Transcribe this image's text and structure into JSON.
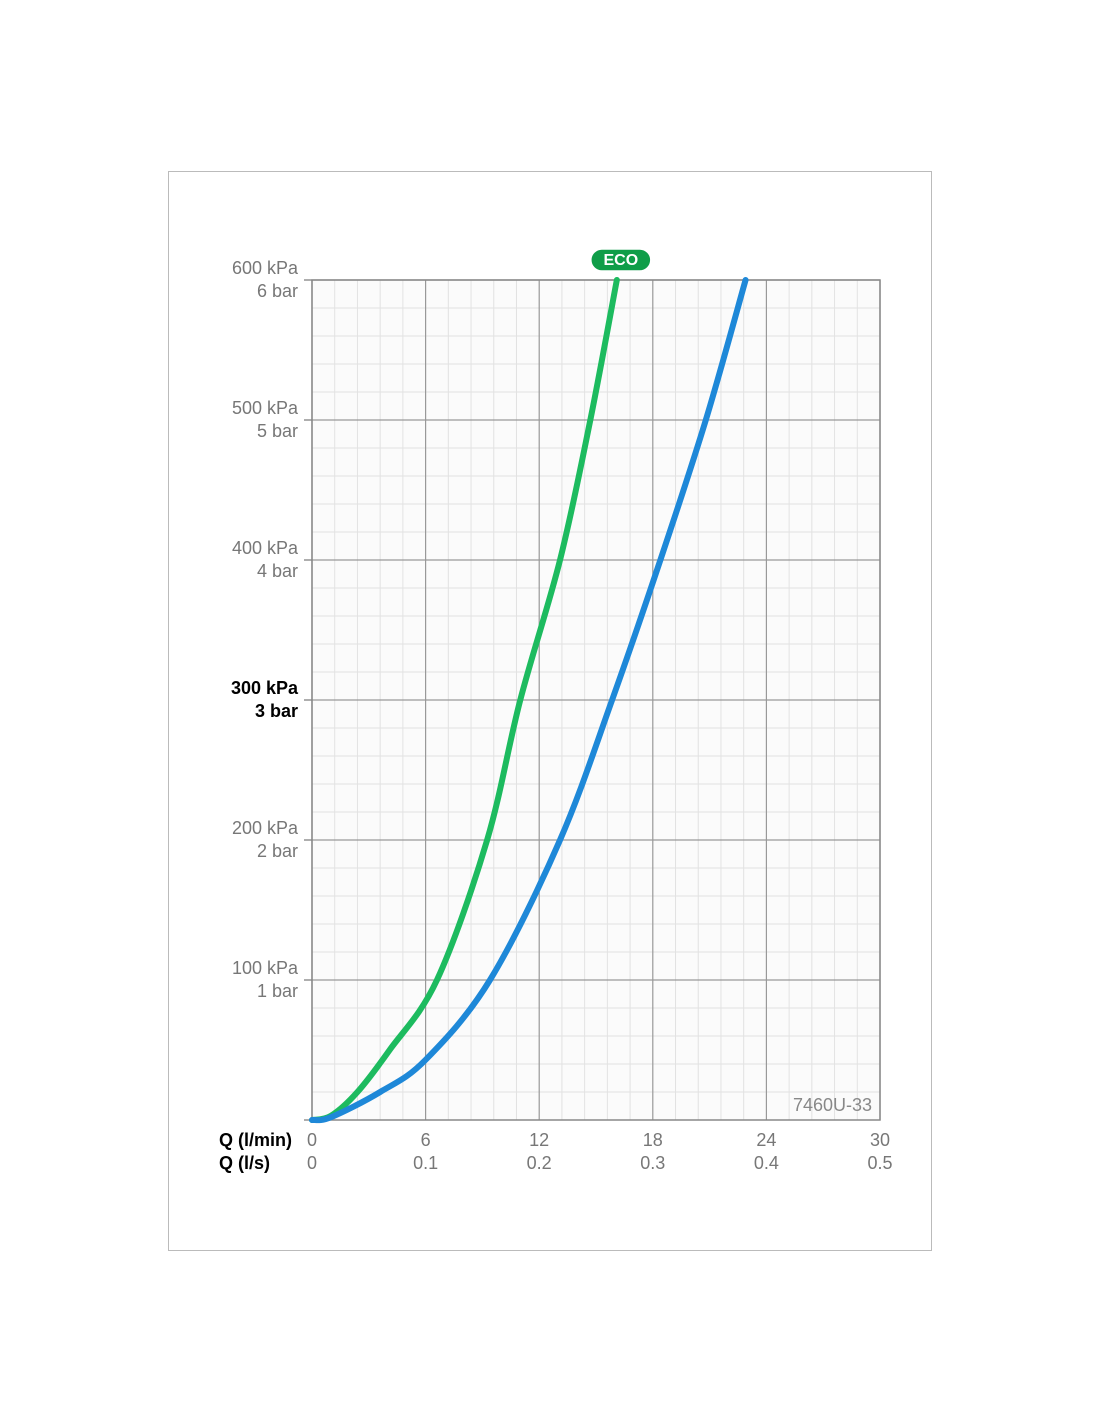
{
  "chart_data": {
    "type": "line",
    "xlabel": "Q (l/min)",
    "x2label": "Q (l/s)",
    "xlim": [
      0,
      30
    ],
    "xticks": [
      0,
      6,
      12,
      18,
      24,
      30
    ],
    "x2lim": [
      0,
      0.5
    ],
    "x2ticks": [
      0,
      0.1,
      0.2,
      0.3,
      0.4,
      0.5
    ],
    "ylim": [
      0,
      600
    ],
    "yticks": [
      {
        "value": 100,
        "label": "100 kPa"
      },
      {
        "value": 200,
        "label": "200 kPa"
      },
      {
        "value": 300,
        "label": "300 kPa"
      },
      {
        "value": 400,
        "label": "400 kPa"
      },
      {
        "value": 500,
        "label": "500 kPa"
      },
      {
        "value": 600,
        "label": "600 kPa"
      }
    ],
    "y2lim": [
      0,
      6
    ],
    "y2ticks": [
      {
        "value": 1,
        "label": "1 bar"
      },
      {
        "value": 2,
        "label": "2 bar"
      },
      {
        "value": 3,
        "label": "3 bar"
      },
      {
        "value": 4,
        "label": "4 bar"
      },
      {
        "value": 5,
        "label": "5 bar"
      },
      {
        "value": 6,
        "label": "6 bar"
      }
    ],
    "highlight_y": 300,
    "grid": true,
    "minor_divisions": 5,
    "series": [
      {
        "color": "#1dbb5f",
        "label": "ECO",
        "x": [
          0,
          1,
          2.4,
          4.1,
          6.6,
          9.25,
          11,
          13.1,
          14.7,
          16.1
        ],
        "values": [
          0,
          3,
          20,
          50,
          100,
          200,
          300,
          400,
          500,
          600
        ]
      },
      {
        "color": "#1e88d8",
        "x": [
          0,
          1,
          3.6,
          6,
          9.4,
          13.1,
          15.85,
          18.4,
          20.8,
          22.9
        ],
        "values": [
          0,
          2,
          20,
          43,
          100,
          200,
          300,
          400,
          500,
          600
        ]
      }
    ],
    "annotation": "7460U-33"
  }
}
